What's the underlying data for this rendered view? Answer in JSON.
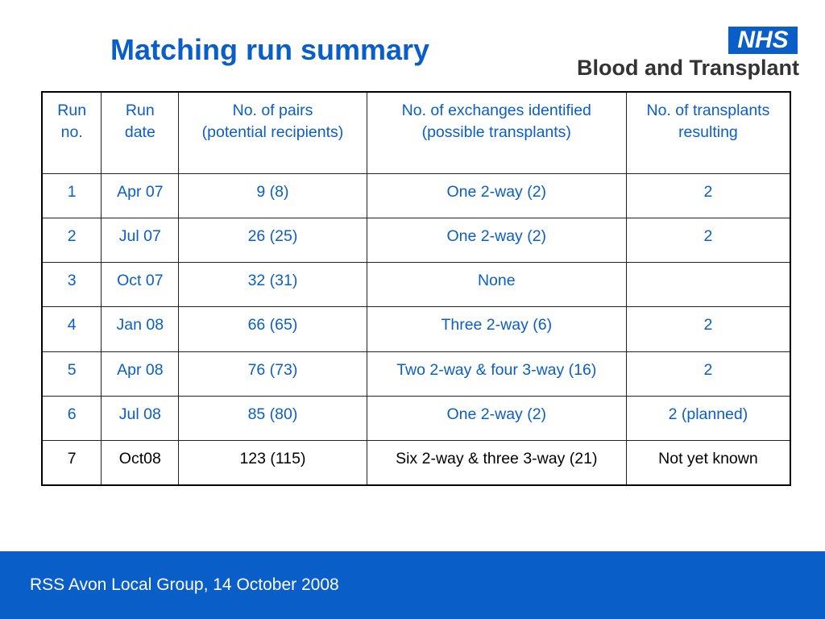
{
  "slide": {
    "title": "Matching run summary"
  },
  "logo": {
    "badge": "NHS",
    "organisation": "Blood and Transplant"
  },
  "table": {
    "headers": [
      [
        "Run",
        "no."
      ],
      [
        "Run",
        "date"
      ],
      [
        "No. of pairs",
        "(potential recipients)"
      ],
      [
        "No. of exchanges identified",
        "(possible transplants)"
      ],
      [
        "No. of transplants",
        "resulting"
      ]
    ],
    "rows": [
      [
        "1",
        "Apr 07",
        "9 (8)",
        "One 2-way (2)",
        "2"
      ],
      [
        "2",
        "Jul 07",
        "26 (25)",
        "One 2-way (2)",
        "2"
      ],
      [
        "3",
        "Oct 07",
        "32 (31)",
        "None",
        ""
      ],
      [
        "4",
        "Jan 08",
        "66 (65)",
        "Three 2-way (6)",
        "2"
      ],
      [
        "5",
        "Apr 08",
        "76 (73)",
        "Two 2-way & four 3-way (16)",
        "2"
      ],
      [
        "6",
        "Jul 08",
        "85 (80)",
        "One 2-way (2)",
        "2 (planned)"
      ],
      [
        "7",
        "Oct08",
        "123 (115)",
        "Six 2-way & three 3-way (21)",
        "Not yet known"
      ]
    ]
  },
  "footer": {
    "text": "RSS Avon Local Group, 14 October 2008"
  },
  "colors": {
    "accent_blue": "#0a5ec8",
    "last_row_text": "#000000"
  }
}
